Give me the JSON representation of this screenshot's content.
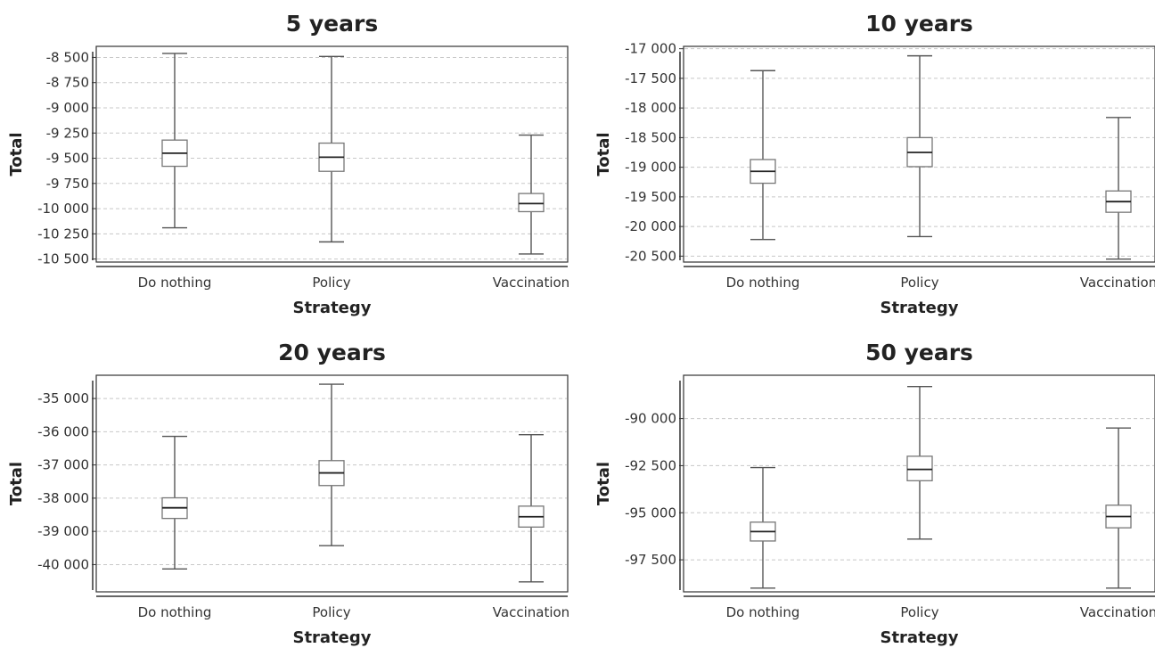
{
  "chart_data": [
    {
      "type": "box",
      "title": "5 years",
      "xlabel": "Strategy",
      "ylabel": "Total",
      "categories": [
        "Do nothing",
        "Policy",
        "Vaccination"
      ],
      "ylim": [
        -10530,
        -8390
      ],
      "yticks": [
        -8500,
        -8750,
        -9000,
        -9250,
        -9500,
        -9750,
        -10000,
        -10250,
        -10500
      ],
      "ytick_labels": [
        "-8 500",
        "-8 750",
        "-9 000",
        "-9 250",
        "-9 500",
        "-9 750",
        "-10 000",
        "-10 250",
        "-10 500"
      ],
      "grid": true,
      "boxes": [
        {
          "min": -10190,
          "q1": -9580,
          "median": -9450,
          "q3": -9320,
          "max": -8460
        },
        {
          "min": -10330,
          "q1": -9630,
          "median": -9490,
          "q3": -9350,
          "max": -8490
        },
        {
          "min": -10450,
          "q1": -10030,
          "median": -9950,
          "q3": -9850,
          "max": -9270
        }
      ]
    },
    {
      "type": "box",
      "title": "10 years",
      "xlabel": "Strategy",
      "ylabel": "Total",
      "categories": [
        "Do nothing",
        "Policy",
        "Vaccination"
      ],
      "ylim": [
        -20600,
        -16960
      ],
      "yticks": [
        -17000,
        -17500,
        -18000,
        -18500,
        -19000,
        -19500,
        -20000,
        -20500
      ],
      "ytick_labels": [
        "-17 000",
        "-17 500",
        "-18 000",
        "-18 500",
        "-19 000",
        "-19 500",
        "-20 000",
        "-20 500"
      ],
      "grid": true,
      "boxes": [
        {
          "min": -20220,
          "q1": -19270,
          "median": -19070,
          "q3": -18870,
          "max": -17370
        },
        {
          "min": -20170,
          "q1": -18990,
          "median": -18750,
          "q3": -18500,
          "max": -17120
        },
        {
          "min": -20550,
          "q1": -19760,
          "median": -19580,
          "q3": -19400,
          "max": -18160
        }
      ]
    },
    {
      "type": "box",
      "title": "20 years",
      "xlabel": "Strategy",
      "ylabel": "Total",
      "categories": [
        "Do nothing",
        "Policy",
        "Vaccination"
      ],
      "ylim": [
        -40820,
        -34300
      ],
      "yticks": [
        -35000,
        -36000,
        -37000,
        -38000,
        -39000,
        -40000
      ],
      "ytick_labels": [
        "-35 000",
        "-36 000",
        "-37 000",
        "-38 000",
        "-39 000",
        "-40 000"
      ],
      "grid": true,
      "boxes": [
        {
          "min": -40130,
          "q1": -38610,
          "median": -38290,
          "q3": -37990,
          "max": -36140
        },
        {
          "min": -39430,
          "q1": -37620,
          "median": -37240,
          "q3": -36870,
          "max": -34570
        },
        {
          "min": -40520,
          "q1": -38870,
          "median": -38560,
          "q3": -38240,
          "max": -36090
        }
      ]
    },
    {
      "type": "box",
      "title": "50 years",
      "xlabel": "Strategy",
      "ylabel": "Total",
      "categories": [
        "Do nothing",
        "Policy",
        "Vaccination"
      ],
      "ylim": [
        -99200,
        -87700
      ],
      "yticks": [
        -90000,
        -92500,
        -95000,
        -97500
      ],
      "ytick_labels": [
        "-90 000",
        "-92 500",
        "-95 000",
        "-97 500"
      ],
      "grid": true,
      "boxes": [
        {
          "min": -99000,
          "q1": -96500,
          "median": -96000,
          "q3": -95500,
          "max": -92600
        },
        {
          "min": -96400,
          "q1": -93300,
          "median": -92700,
          "q3": -92000,
          "max": -88300
        },
        {
          "min": -99000,
          "q1": -95800,
          "median": -95200,
          "q3": -94600,
          "max": -90500
        }
      ]
    }
  ]
}
